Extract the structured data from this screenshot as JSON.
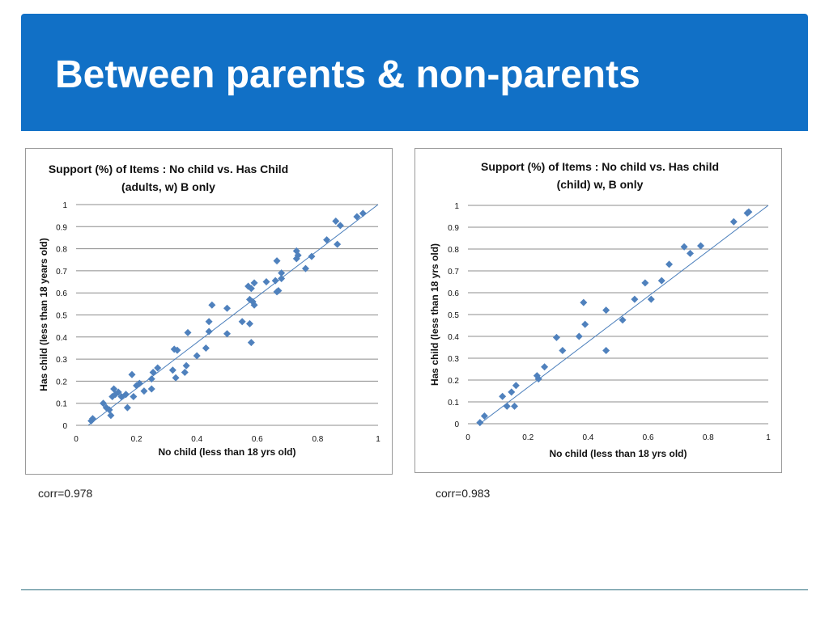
{
  "slide": {
    "title": "Between parents & non-parents",
    "accent_color": "#1170c6"
  },
  "corr_labels": [
    "corr=0.978",
    "corr=0.983"
  ],
  "chart_data": [
    {
      "type": "scatter",
      "title_lines": [
        "Support (%) of Items : No child vs.  Has Child",
        "(adults, w) B only"
      ],
      "xlabel": "No child (less than 18 yrs old)",
      "ylabel": "Has child (less than 18 years old)",
      "xlim": [
        0,
        1
      ],
      "ylim": [
        0,
        1
      ],
      "xticks": [
        "0",
        "0.2",
        "0.4",
        "0.6",
        "0.8",
        "1"
      ],
      "yticks": [
        "0",
        "0.1",
        "0.2",
        "0.3",
        "0.4",
        "0.5",
        "0.6",
        "0.7",
        "0.8",
        "0.9",
        "1"
      ],
      "grid": true,
      "trendline": true,
      "marker_color": "#4f81bd",
      "line_color": "#4a7ebb",
      "points": [
        [
          0.05,
          0.02
        ],
        [
          0.055,
          0.03
        ],
        [
          0.09,
          0.1
        ],
        [
          0.1,
          0.08
        ],
        [
          0.11,
          0.07
        ],
        [
          0.115,
          0.045
        ],
        [
          0.12,
          0.13
        ],
        [
          0.125,
          0.165
        ],
        [
          0.13,
          0.14
        ],
        [
          0.14,
          0.15
        ],
        [
          0.15,
          0.13
        ],
        [
          0.165,
          0.14
        ],
        [
          0.17,
          0.08
        ],
        [
          0.185,
          0.23
        ],
        [
          0.19,
          0.13
        ],
        [
          0.2,
          0.18
        ],
        [
          0.21,
          0.19
        ],
        [
          0.225,
          0.155
        ],
        [
          0.25,
          0.165
        ],
        [
          0.25,
          0.21
        ],
        [
          0.255,
          0.24
        ],
        [
          0.27,
          0.26
        ],
        [
          0.32,
          0.25
        ],
        [
          0.325,
          0.345
        ],
        [
          0.33,
          0.215
        ],
        [
          0.335,
          0.34
        ],
        [
          0.36,
          0.24
        ],
        [
          0.365,
          0.27
        ],
        [
          0.37,
          0.42
        ],
        [
          0.4,
          0.315
        ],
        [
          0.43,
          0.35
        ],
        [
          0.44,
          0.47
        ],
        [
          0.44,
          0.425
        ],
        [
          0.45,
          0.545
        ],
        [
          0.5,
          0.415
        ],
        [
          0.5,
          0.53
        ],
        [
          0.55,
          0.47
        ],
        [
          0.57,
          0.63
        ],
        [
          0.575,
          0.57
        ],
        [
          0.575,
          0.46
        ],
        [
          0.58,
          0.375
        ],
        [
          0.58,
          0.62
        ],
        [
          0.585,
          0.56
        ],
        [
          0.59,
          0.545
        ],
        [
          0.59,
          0.645
        ],
        [
          0.63,
          0.65
        ],
        [
          0.66,
          0.655
        ],
        [
          0.665,
          0.745
        ],
        [
          0.665,
          0.605
        ],
        [
          0.67,
          0.61
        ],
        [
          0.68,
          0.69
        ],
        [
          0.68,
          0.665
        ],
        [
          0.73,
          0.79
        ],
        [
          0.73,
          0.755
        ],
        [
          0.735,
          0.77
        ],
        [
          0.76,
          0.71
        ],
        [
          0.78,
          0.765
        ],
        [
          0.83,
          0.84
        ],
        [
          0.86,
          0.925
        ],
        [
          0.865,
          0.82
        ],
        [
          0.875,
          0.905
        ],
        [
          0.93,
          0.945
        ],
        [
          0.95,
          0.96
        ]
      ]
    },
    {
      "type": "scatter",
      "title_lines": [
        "Support (%) of Items : No child vs. Has child",
        "(child) w, B only"
      ],
      "xlabel": "No child (less than 18 yrs old)",
      "ylabel": "Has child (less than 18 yrs old)",
      "xlim": [
        0,
        1
      ],
      "ylim": [
        0,
        1
      ],
      "xticks": [
        "0",
        "0.2",
        "0.4",
        "0.6",
        "0.8",
        "1"
      ],
      "yticks": [
        "0",
        "0.1",
        "0.2",
        "0.3",
        "0.4",
        "0.5",
        "0.6",
        "0.7",
        "0.8",
        "0.9",
        "1"
      ],
      "grid": true,
      "trendline": true,
      "marker_color": "#4f81bd",
      "line_color": "#4a7ebb",
      "points": [
        [
          0.04,
          0.005
        ],
        [
          0.055,
          0.035
        ],
        [
          0.115,
          0.125
        ],
        [
          0.13,
          0.08
        ],
        [
          0.145,
          0.145
        ],
        [
          0.155,
          0.08
        ],
        [
          0.16,
          0.175
        ],
        [
          0.23,
          0.22
        ],
        [
          0.235,
          0.205
        ],
        [
          0.255,
          0.26
        ],
        [
          0.295,
          0.395
        ],
        [
          0.315,
          0.335
        ],
        [
          0.37,
          0.4
        ],
        [
          0.385,
          0.555
        ],
        [
          0.39,
          0.455
        ],
        [
          0.46,
          0.52
        ],
        [
          0.46,
          0.335
        ],
        [
          0.515,
          0.475
        ],
        [
          0.555,
          0.57
        ],
        [
          0.59,
          0.645
        ],
        [
          0.61,
          0.57
        ],
        [
          0.645,
          0.655
        ],
        [
          0.67,
          0.73
        ],
        [
          0.72,
          0.81
        ],
        [
          0.74,
          0.78
        ],
        [
          0.775,
          0.815
        ],
        [
          0.885,
          0.925
        ],
        [
          0.93,
          0.965
        ],
        [
          0.935,
          0.97
        ]
      ]
    }
  ]
}
